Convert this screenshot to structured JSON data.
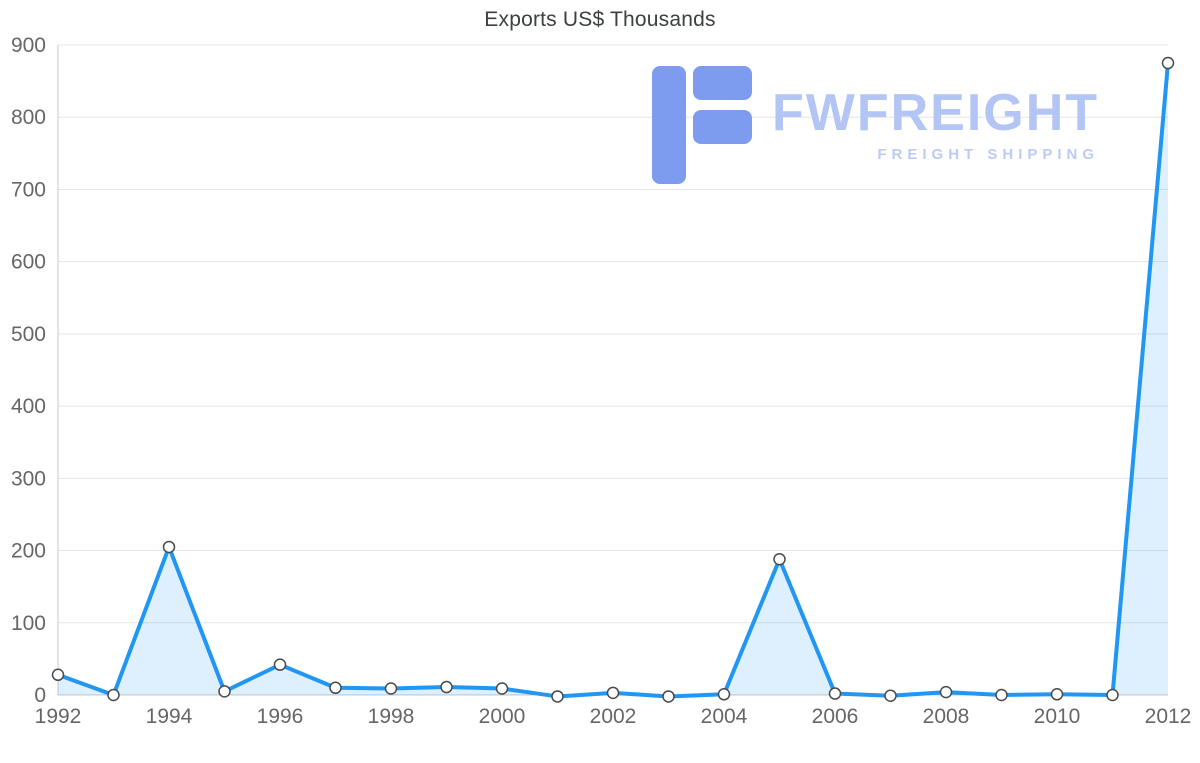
{
  "title": "Exports US$ Thousands",
  "watermark": {
    "brand": "FWFREIGHT",
    "tagline": "FREIGHT SHIPPING",
    "mark_color": "#7d9cf0",
    "text_color": "#b3c5f4",
    "tagline_color": "#bccbf4"
  },
  "colors": {
    "line": "#2196f3",
    "area_fill": "#2196f3",
    "area_opacity": "0.15",
    "grid": "#e6e6e6",
    "axis_line": "#c8c8c8",
    "axis_text": "#666666",
    "marker_fill": "#ffffff",
    "marker_stroke": "#4a4a4a",
    "title_text": "#3c4043"
  },
  "chart_data": {
    "type": "area",
    "title": "Exports US$ Thousands",
    "xlabel": "",
    "ylabel": "",
    "x": [
      1992,
      1993,
      1994,
      1995,
      1996,
      1997,
      1998,
      1999,
      2000,
      2001,
      2002,
      2003,
      2004,
      2005,
      2006,
      2007,
      2008,
      2009,
      2010,
      2011,
      2012
    ],
    "values": [
      28,
      0,
      205,
      5,
      42,
      10,
      9,
      11,
      9,
      -2,
      3,
      -2,
      1,
      188,
      2,
      -1,
      4,
      0,
      1,
      0,
      875
    ],
    "series_name": "Exports US$ Thousands",
    "xlim": [
      1992,
      2012
    ],
    "ylim": [
      0,
      900
    ],
    "x_ticks": [
      1992,
      1994,
      1996,
      1998,
      2000,
      2002,
      2004,
      2006,
      2008,
      2010,
      2012
    ],
    "y_ticks": [
      0,
      100,
      200,
      300,
      400,
      500,
      600,
      700,
      800,
      900
    ],
    "grid": "horizontal",
    "legend": "none",
    "marker": "circle-white"
  }
}
